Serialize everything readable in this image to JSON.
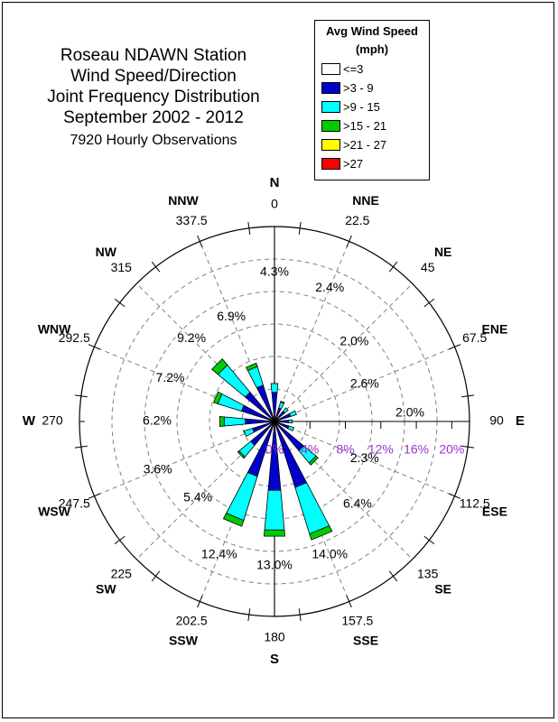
{
  "title": {
    "lines": [
      "Roseau NDAWN Station",
      "Wind Speed/Direction",
      "Joint Frequency Distribution",
      "September 2002 - 2012"
    ],
    "subtitle": "7920 Hourly Observations"
  },
  "legend": {
    "title_line1": "Avg Wind Speed",
    "title_line2": "(mph)",
    "items": [
      {
        "label": "<=3",
        "color": "#ffffff"
      },
      {
        "label": ">3 - 9",
        "color": "#0000cc"
      },
      {
        "label": ">9 - 15",
        "color": "#00ffff"
      },
      {
        "label": ">15 - 21",
        "color": "#00cc00"
      },
      {
        "label": ">21 - 27",
        "color": "#ffff00"
      },
      {
        "label": ">27",
        "color": "#ff0000"
      }
    ]
  },
  "directions": [
    {
      "abbr": "N",
      "deg": "0"
    },
    {
      "abbr": "NNE",
      "deg": "22.5"
    },
    {
      "abbr": "NE",
      "deg": "45"
    },
    {
      "abbr": "ENE",
      "deg": "67.5"
    },
    {
      "abbr": "E",
      "deg": "90"
    },
    {
      "abbr": "ESE",
      "deg": "112.5"
    },
    {
      "abbr": "SE",
      "deg": "135"
    },
    {
      "abbr": "SSE",
      "deg": "157.5"
    },
    {
      "abbr": "S",
      "deg": "180"
    },
    {
      "abbr": "SSW",
      "deg": "202.5"
    },
    {
      "abbr": "SW",
      "deg": "225"
    },
    {
      "abbr": "WSW",
      "deg": "247.5"
    },
    {
      "abbr": "W",
      "deg": "270"
    },
    {
      "abbr": "WNW",
      "deg": "292.5"
    },
    {
      "abbr": "NW",
      "deg": "315"
    },
    {
      "abbr": "NNW",
      "deg": "337.5"
    }
  ],
  "radial_ticks": [
    "0%",
    "4%",
    "8%",
    "12%",
    "16%",
    "20%"
  ],
  "chart_data": {
    "type": "wind-rose",
    "title": "Roseau NDAWN Station Wind Speed/Direction Joint Frequency Distribution September 2002 - 2012",
    "subtitle": "7920 Hourly Observations",
    "radial_axis": {
      "unit": "%",
      "range": [
        0,
        20
      ],
      "ticks": [
        0,
        4,
        8,
        12,
        16,
        20
      ],
      "ring_max": 22
    },
    "speed_bins": [
      {
        "label": "<=3",
        "color": "#ffffff"
      },
      {
        "label": ">3 - 9",
        "color": "#0000cc"
      },
      {
        "label": ">9 - 15",
        "color": "#00ffff"
      },
      {
        "label": ">15 - 21",
        "color": "#00cc00"
      },
      {
        "label": ">21 - 27",
        "color": "#ffff00"
      },
      {
        "label": ">27",
        "color": "#ff0000"
      }
    ],
    "directions": [
      "N",
      "NNE",
      "NE",
      "ENE",
      "E",
      "ESE",
      "SE",
      "SSE",
      "S",
      "SSW",
      "SW",
      "WSW",
      "W",
      "WNW",
      "NW",
      "NNW"
    ],
    "direction_degrees": [
      0,
      22.5,
      45,
      67.5,
      90,
      112.5,
      135,
      157.5,
      180,
      202.5,
      225,
      247.5,
      270,
      292.5,
      315,
      337.5
    ],
    "total_frequency_labels": [
      "4.3%",
      "2.4%",
      "2.0%",
      "2.6%",
      "2.0%",
      "2.3%",
      "6.4%",
      "14.0%",
      "13.0%",
      "12.4%",
      "5.4%",
      "3.6%",
      "6.2%",
      "7.2%",
      "9.2%",
      "6.9%"
    ],
    "frequencies": [
      [
        0.3,
        3.0,
        1.0,
        0.0,
        0.0,
        0.0
      ],
      [
        0.3,
        1.3,
        0.7,
        0.1,
        0.0,
        0.0
      ],
      [
        0.3,
        1.2,
        0.5,
        0.0,
        0.0,
        0.0
      ],
      [
        0.3,
        1.6,
        0.7,
        0.0,
        0.0,
        0.0
      ],
      [
        0.3,
        1.3,
        0.4,
        0.0,
        0.0,
        0.0
      ],
      [
        0.3,
        1.4,
        0.6,
        0.0,
        0.0,
        0.0
      ],
      [
        0.3,
        4.0,
        1.8,
        0.3,
        0.0,
        0.0
      ],
      [
        0.3,
        7.5,
        5.5,
        0.7,
        0.0,
        0.0
      ],
      [
        0.3,
        7.5,
        4.5,
        0.7,
        0.0,
        0.0
      ],
      [
        0.3,
        6.2,
        5.2,
        0.7,
        0.0,
        0.0
      ],
      [
        0.3,
        3.2,
        1.7,
        0.2,
        0.0,
        0.0
      ],
      [
        0.3,
        2.3,
        1.0,
        0.0,
        0.0,
        0.0
      ],
      [
        0.3,
        3.0,
        2.4,
        0.5,
        0.0,
        0.0
      ],
      [
        0.3,
        3.6,
        2.8,
        0.5,
        0.0,
        0.0
      ],
      [
        0.3,
        4.0,
        4.0,
        0.9,
        0.0,
        0.0
      ],
      [
        0.3,
        4.0,
        2.2,
        0.4,
        0.0,
        0.0
      ]
    ]
  }
}
